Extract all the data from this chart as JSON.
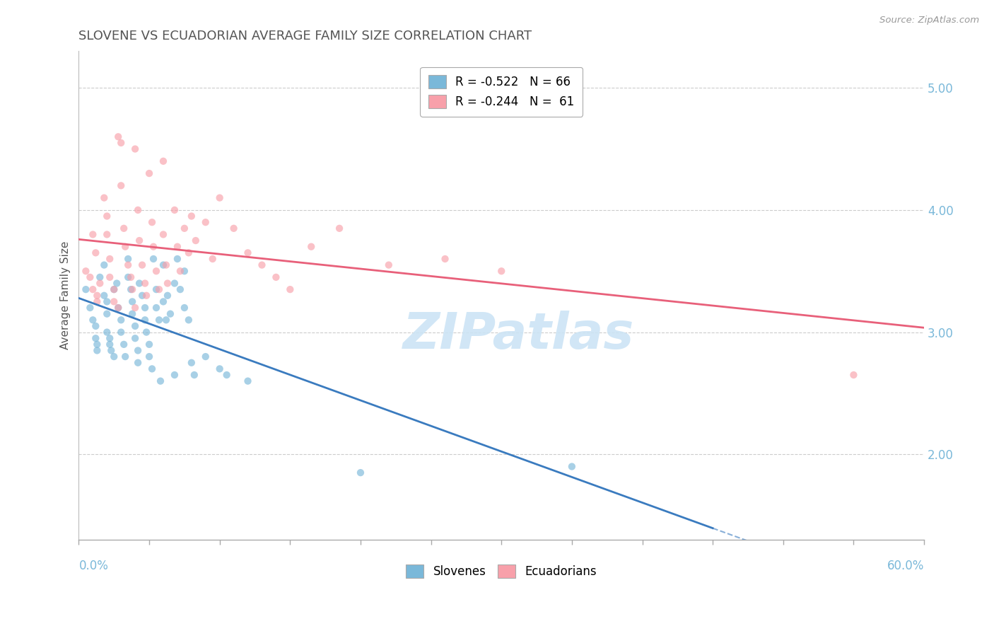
{
  "title": "SLOVENE VS ECUADORIAN AVERAGE FAMILY SIZE CORRELATION CHART",
  "source_text": "Source: ZipAtlas.com",
  "ylabel": "Average Family Size",
  "xlim": [
    0.0,
    0.6
  ],
  "ylim": [
    1.3,
    5.3
  ],
  "yticks": [
    2.0,
    3.0,
    4.0,
    5.0
  ],
  "legend_entry1": "R = -0.522   N = 66",
  "legend_entry2": "R = -0.244   N =  61",
  "slovene_color": "#7ab8d9",
  "ecuadorian_color": "#f8a0aa",
  "slovene_line_color": "#3a7bbf",
  "ecuadorian_line_color": "#e8607a",
  "background_color": "#ffffff",
  "grid_color": "#cccccc",
  "title_color": "#555555",
  "axis_tick_color": "#7ab8d9",
  "marker_size": 55,
  "marker_alpha": 0.65,
  "title_fontsize": 13,
  "label_fontsize": 11,
  "tick_fontsize": 12,
  "legend_fontsize": 12,
  "slovene_points": [
    [
      0.005,
      3.35
    ],
    [
      0.008,
      3.2
    ],
    [
      0.01,
      3.1
    ],
    [
      0.012,
      3.05
    ],
    [
      0.012,
      2.95
    ],
    [
      0.013,
      2.9
    ],
    [
      0.013,
      2.85
    ],
    [
      0.015,
      3.45
    ],
    [
      0.018,
      3.55
    ],
    [
      0.018,
      3.3
    ],
    [
      0.02,
      3.25
    ],
    [
      0.02,
      3.15
    ],
    [
      0.02,
      3.0
    ],
    [
      0.022,
      2.95
    ],
    [
      0.022,
      2.9
    ],
    [
      0.023,
      2.85
    ],
    [
      0.025,
      2.8
    ],
    [
      0.025,
      3.35
    ],
    [
      0.027,
      3.4
    ],
    [
      0.028,
      3.2
    ],
    [
      0.03,
      3.1
    ],
    [
      0.03,
      3.0
    ],
    [
      0.032,
      2.9
    ],
    [
      0.033,
      2.8
    ],
    [
      0.035,
      3.6
    ],
    [
      0.035,
      3.45
    ],
    [
      0.037,
      3.35
    ],
    [
      0.038,
      3.25
    ],
    [
      0.038,
      3.15
    ],
    [
      0.04,
      3.05
    ],
    [
      0.04,
      2.95
    ],
    [
      0.042,
      2.85
    ],
    [
      0.042,
      2.75
    ],
    [
      0.043,
      3.4
    ],
    [
      0.045,
      3.3
    ],
    [
      0.047,
      3.2
    ],
    [
      0.047,
      3.1
    ],
    [
      0.048,
      3.0
    ],
    [
      0.05,
      2.9
    ],
    [
      0.05,
      2.8
    ],
    [
      0.052,
      2.7
    ],
    [
      0.053,
      3.6
    ],
    [
      0.055,
      3.35
    ],
    [
      0.055,
      3.2
    ],
    [
      0.057,
      3.1
    ],
    [
      0.058,
      2.6
    ],
    [
      0.06,
      3.55
    ],
    [
      0.06,
      3.25
    ],
    [
      0.062,
      3.1
    ],
    [
      0.063,
      3.3
    ],
    [
      0.065,
      3.15
    ],
    [
      0.068,
      3.4
    ],
    [
      0.068,
      2.65
    ],
    [
      0.07,
      3.6
    ],
    [
      0.072,
      3.35
    ],
    [
      0.075,
      3.5
    ],
    [
      0.075,
      3.2
    ],
    [
      0.078,
      3.1
    ],
    [
      0.08,
      2.75
    ],
    [
      0.082,
      2.65
    ],
    [
      0.09,
      2.8
    ],
    [
      0.1,
      2.7
    ],
    [
      0.105,
      2.65
    ],
    [
      0.12,
      2.6
    ],
    [
      0.2,
      1.85
    ],
    [
      0.35,
      1.9
    ]
  ],
  "ecuadorian_points": [
    [
      0.005,
      3.5
    ],
    [
      0.008,
      3.45
    ],
    [
      0.01,
      3.35
    ],
    [
      0.01,
      3.8
    ],
    [
      0.012,
      3.65
    ],
    [
      0.013,
      3.3
    ],
    [
      0.013,
      3.25
    ],
    [
      0.015,
      3.4
    ],
    [
      0.018,
      4.1
    ],
    [
      0.02,
      3.95
    ],
    [
      0.02,
      3.8
    ],
    [
      0.022,
      3.6
    ],
    [
      0.022,
      3.45
    ],
    [
      0.025,
      3.35
    ],
    [
      0.025,
      3.25
    ],
    [
      0.028,
      3.2
    ],
    [
      0.028,
      4.6
    ],
    [
      0.03,
      4.55
    ],
    [
      0.03,
      4.2
    ],
    [
      0.032,
      3.85
    ],
    [
      0.033,
      3.7
    ],
    [
      0.035,
      3.55
    ],
    [
      0.037,
      3.45
    ],
    [
      0.038,
      3.35
    ],
    [
      0.04,
      3.2
    ],
    [
      0.04,
      4.5
    ],
    [
      0.042,
      4.0
    ],
    [
      0.043,
      3.75
    ],
    [
      0.045,
      3.55
    ],
    [
      0.047,
      3.4
    ],
    [
      0.048,
      3.3
    ],
    [
      0.05,
      4.3
    ],
    [
      0.052,
      3.9
    ],
    [
      0.053,
      3.7
    ],
    [
      0.055,
      3.5
    ],
    [
      0.057,
      3.35
    ],
    [
      0.06,
      4.4
    ],
    [
      0.06,
      3.8
    ],
    [
      0.062,
      3.55
    ],
    [
      0.063,
      3.4
    ],
    [
      0.068,
      4.0
    ],
    [
      0.07,
      3.7
    ],
    [
      0.072,
      3.5
    ],
    [
      0.075,
      3.85
    ],
    [
      0.078,
      3.65
    ],
    [
      0.08,
      3.95
    ],
    [
      0.083,
      3.75
    ],
    [
      0.09,
      3.9
    ],
    [
      0.095,
      3.6
    ],
    [
      0.1,
      4.1
    ],
    [
      0.11,
      3.85
    ],
    [
      0.12,
      3.65
    ],
    [
      0.13,
      3.55
    ],
    [
      0.14,
      3.45
    ],
    [
      0.15,
      3.35
    ],
    [
      0.165,
      3.7
    ],
    [
      0.185,
      3.85
    ],
    [
      0.22,
      3.55
    ],
    [
      0.26,
      3.6
    ],
    [
      0.3,
      3.5
    ],
    [
      0.55,
      2.65
    ]
  ],
  "watermark": "ZIPatlas",
  "watermark_color": "#cce4f5",
  "source_color": "#999999"
}
